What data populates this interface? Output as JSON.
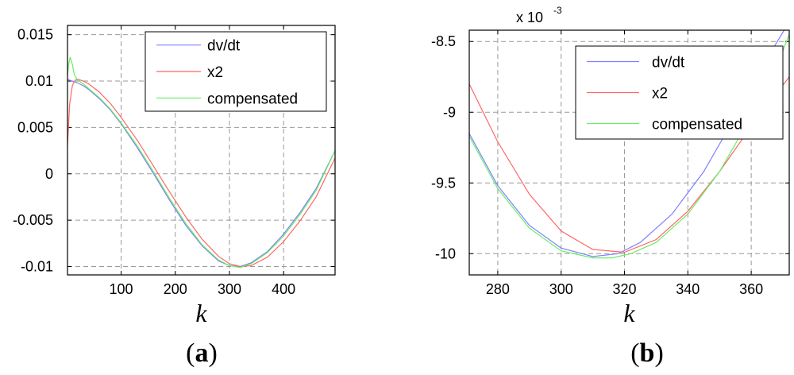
{
  "chart_data": [
    {
      "type": "line",
      "panel_label": "(a)",
      "panel_letter": "a",
      "xlabel": "k",
      "xlim": [
        1,
        495
      ],
      "ylim": [
        -0.0109,
        0.016
      ],
      "xticks": [
        100,
        200,
        300,
        400
      ],
      "xtick_labels": [
        "100",
        "200",
        "300",
        "400"
      ],
      "yticks": [
        -0.01,
        -0.005,
        0,
        0.005,
        0.01,
        0.015
      ],
      "ytick_labels": [
        "-0.01",
        "-0.005",
        "0",
        "0.005",
        "0.01",
        "0.015"
      ],
      "grid": true,
      "legend_position": "top-right",
      "series": [
        {
          "name": "dv/dt",
          "color": "#7f7fff",
          "x": [
            1,
            5,
            10,
            20,
            30,
            40,
            60,
            80,
            100,
            130,
            160,
            190,
            220,
            250,
            280,
            300,
            320,
            340,
            370,
            400,
            430,
            460,
            495
          ],
          "y": [
            0.0102,
            0.0101,
            0.01,
            0.0098,
            0.0095,
            0.0091,
            0.0081,
            0.0069,
            0.0054,
            0.0028,
            0.0,
            -0.0029,
            -0.0056,
            -0.0078,
            -0.0094,
            -0.0099,
            -0.01,
            -0.0096,
            -0.0084,
            -0.0065,
            -0.0042,
            -0.0016,
            0.0025
          ]
        },
        {
          "name": "x2",
          "color": "#ff6666",
          "x": [
            1,
            5,
            10,
            15,
            20,
            30,
            40,
            60,
            80,
            100,
            130,
            160,
            190,
            220,
            250,
            280,
            300,
            320,
            340,
            370,
            400,
            430,
            460,
            495
          ],
          "y": [
            0.003,
            0.0075,
            0.0095,
            0.0101,
            0.0102,
            0.01,
            0.0097,
            0.0088,
            0.0076,
            0.0061,
            0.0036,
            0.0008,
            -0.002,
            -0.0047,
            -0.0071,
            -0.0089,
            -0.0097,
            -0.01,
            -0.0099,
            -0.009,
            -0.0073,
            -0.0051,
            -0.0025,
            0.0017
          ]
        },
        {
          "name": "compensated",
          "color": "#66ee66",
          "x": [
            1,
            3,
            6,
            10,
            14,
            20,
            30,
            40,
            60,
            80,
            100,
            130,
            160,
            190,
            220,
            250,
            280,
            300,
            320,
            340,
            370,
            400,
            430,
            460,
            495
          ],
          "y": [
            0.0105,
            0.0118,
            0.0126,
            0.0118,
            0.0106,
            0.0101,
            0.0097,
            0.0092,
            0.0082,
            0.007,
            0.0055,
            0.003,
            0.0002,
            -0.0027,
            -0.0054,
            -0.0077,
            -0.0093,
            -0.0099,
            -0.0101,
            -0.0097,
            -0.0085,
            -0.0067,
            -0.0044,
            -0.0018,
            0.0025
          ]
        }
      ]
    },
    {
      "type": "line",
      "panel_label": "(b)",
      "panel_letter": "b",
      "xlabel": "k",
      "y_scale_label": "x 10",
      "y_scale_exponent": "-3",
      "xlim": [
        271,
        372
      ],
      "ylim": [
        -10.15,
        -8.42
      ],
      "xticks": [
        280,
        300,
        320,
        340,
        360
      ],
      "xtick_labels": [
        "280",
        "300",
        "320",
        "340",
        "360"
      ],
      "yticks": [
        -10,
        -9.5,
        -9,
        -8.5
      ],
      "ytick_labels": [
        "-10",
        "-9.5",
        "-9",
        "-8.5"
      ],
      "grid": true,
      "legend_position": "top-right",
      "series": [
        {
          "name": "dv/dt",
          "color": "#7f7fff",
          "x": [
            271,
            280,
            290,
            300,
            310,
            318,
            325,
            335,
            345,
            355,
            365,
            372
          ],
          "y": [
            -9.15,
            -9.52,
            -9.8,
            -9.96,
            -10.02,
            -10.0,
            -9.92,
            -9.72,
            -9.42,
            -9.03,
            -8.62,
            -8.36
          ]
        },
        {
          "name": "x2",
          "color": "#ff6666",
          "x": [
            271,
            280,
            290,
            300,
            310,
            320,
            330,
            340,
            350,
            360,
            372
          ],
          "y": [
            -8.8,
            -9.21,
            -9.58,
            -9.84,
            -9.97,
            -9.99,
            -9.9,
            -9.7,
            -9.42,
            -9.1,
            -8.75
          ]
        },
        {
          "name": "compensated",
          "color": "#66ee66",
          "x": [
            271,
            280,
            290,
            300,
            310,
            316,
            322,
            330,
            340,
            350,
            360,
            368,
            372
          ],
          "y": [
            -9.17,
            -9.54,
            -9.82,
            -9.98,
            -10.03,
            -10.03,
            -10.0,
            -9.92,
            -9.72,
            -9.42,
            -9.03,
            -8.68,
            -8.45
          ]
        }
      ]
    }
  ]
}
